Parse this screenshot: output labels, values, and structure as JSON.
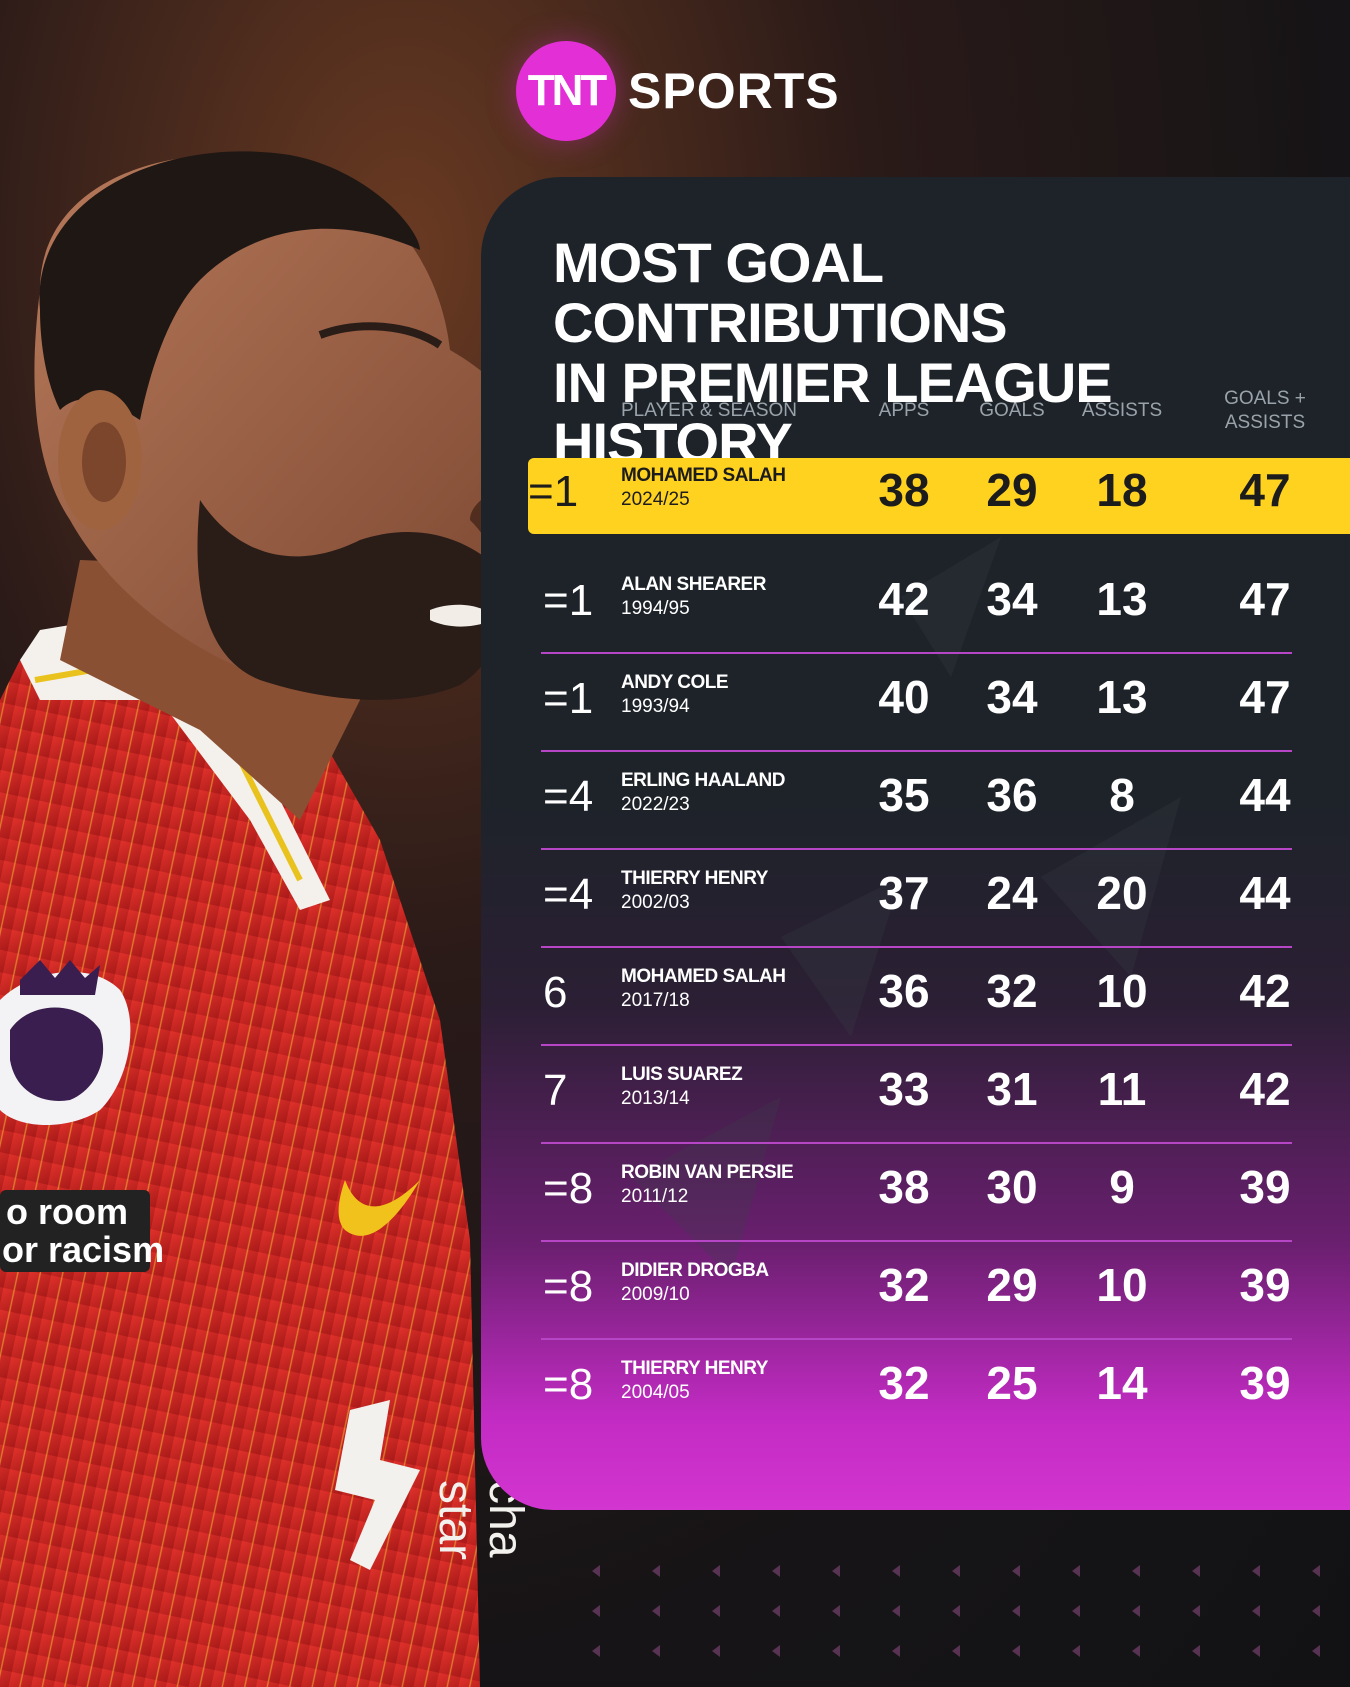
{
  "brand": {
    "circle_text": "TNT",
    "word": "SPORTS"
  },
  "player_art": {
    "sleeve_line1": "o room",
    "sleeve_line2": "or racism",
    "shirt_sponsor_line1": "star",
    "shirt_sponsor_line2": "cha"
  },
  "colors": {
    "highlight": "#ffd21f",
    "accent": "#e32fd6",
    "panel": "#1d2329",
    "divider": "#b746c7"
  },
  "chart_data": {
    "type": "table",
    "title_line1": "MOST GOAL CONTRIBUTIONS",
    "title_line2": "IN PREMIER LEAGUE HISTORY",
    "columns": {
      "player": "PLAYER & SEASON",
      "apps": "APPS",
      "goals": "GOALS",
      "assists": "ASSISTS",
      "ga_line1": "GOALS +",
      "ga_line2": "ASSISTS"
    },
    "rows": [
      {
        "rank": "=1",
        "name": "MOHAMED SALAH",
        "season": "2024/25",
        "apps": "38",
        "goals": "29",
        "assists": "18",
        "ga": "47",
        "highlight": true
      },
      {
        "rank": "=1",
        "name": "ALAN SHEARER",
        "season": "1994/95",
        "apps": "42",
        "goals": "34",
        "assists": "13",
        "ga": "47"
      },
      {
        "rank": "=1",
        "name": "ANDY COLE",
        "season": "1993/94",
        "apps": "40",
        "goals": "34",
        "assists": "13",
        "ga": "47"
      },
      {
        "rank": "=4",
        "name": "ERLING HAALAND",
        "season": "2022/23",
        "apps": "35",
        "goals": "36",
        "assists": "8",
        "ga": "44"
      },
      {
        "rank": "=4",
        "name": "THIERRY HENRY",
        "season": "2002/03",
        "apps": "37",
        "goals": "24",
        "assists": "20",
        "ga": "44"
      },
      {
        "rank": "6",
        "name": "MOHAMED SALAH",
        "season": "2017/18",
        "apps": "36",
        "goals": "32",
        "assists": "10",
        "ga": "42"
      },
      {
        "rank": "7",
        "name": "LUIS SUAREZ",
        "season": "2013/14",
        "apps": "33",
        "goals": "31",
        "assists": "11",
        "ga": "42"
      },
      {
        "rank": "=8",
        "name": "ROBIN VAN PERSIE",
        "season": "2011/12",
        "apps": "38",
        "goals": "30",
        "assists": "9",
        "ga": "39"
      },
      {
        "rank": "=8",
        "name": "DIDIER DROGBA",
        "season": "2009/10",
        "apps": "32",
        "goals": "29",
        "assists": "10",
        "ga": "39"
      },
      {
        "rank": "=8",
        "name": "THIERRY HENRY",
        "season": "2004/05",
        "apps": "32",
        "goals": "25",
        "assists": "14",
        "ga": "39"
      }
    ]
  }
}
